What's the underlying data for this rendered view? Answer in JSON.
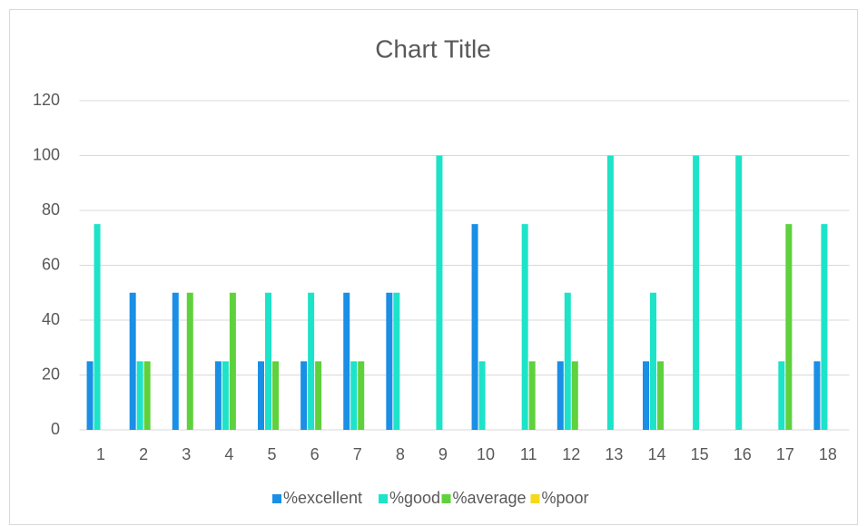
{
  "chart_data": {
    "type": "bar",
    "title": "Chart Title",
    "categories": [
      "1",
      "2",
      "3",
      "4",
      "5",
      "6",
      "7",
      "8",
      "9",
      "10",
      "11",
      "12",
      "13",
      "14",
      "15",
      "16",
      "17",
      "18"
    ],
    "series": [
      {
        "name": "%excellent",
        "color": "#1a8fe6",
        "values": [
          25,
          50,
          50,
          25,
          25,
          25,
          50,
          50,
          0,
          75,
          0,
          25,
          0,
          25,
          0,
          0,
          0,
          25
        ]
      },
      {
        "name": "%good",
        "color": "#1de3c9",
        "values": [
          75,
          25,
          0,
          25,
          50,
          50,
          25,
          50,
          100,
          25,
          75,
          50,
          100,
          50,
          100,
          100,
          25,
          75
        ]
      },
      {
        "name": "%average",
        "color": "#5fd13c",
        "values": [
          0,
          25,
          50,
          50,
          25,
          25,
          25,
          0,
          0,
          0,
          25,
          25,
          0,
          25,
          0,
          0,
          75,
          0
        ]
      },
      {
        "name": "%poor",
        "color": "#f5d91a",
        "values": [
          0,
          0,
          0,
          0,
          0,
          0,
          0,
          0,
          0,
          0,
          0,
          0,
          0,
          0,
          0,
          0,
          0,
          0
        ]
      }
    ],
    "ylim": [
      0,
      120
    ],
    "yticks": [
      0,
      20,
      40,
      60,
      80,
      100,
      120
    ],
    "grid": true,
    "legend": "bottom"
  }
}
